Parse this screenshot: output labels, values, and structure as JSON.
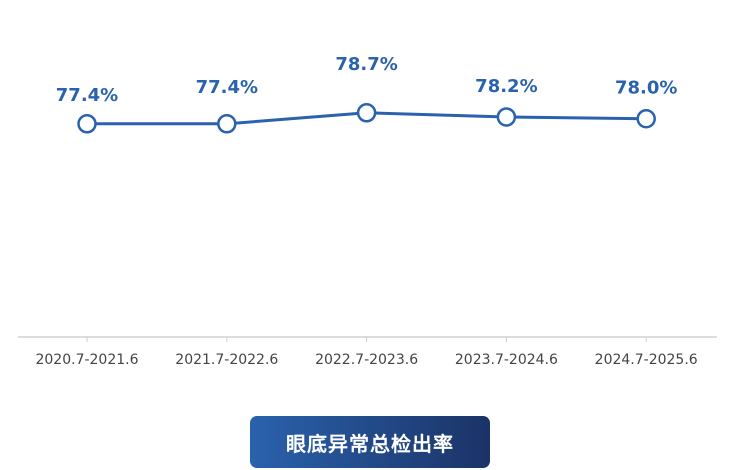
{
  "chart_data": {
    "type": "line",
    "title": "",
    "xlabel": "",
    "ylabel": "",
    "categories": [
      "2020.7-2021.6",
      "2021.7-2022.6",
      "2022.7-2023.6",
      "2023.7-2024.6",
      "2024.7-2025.6"
    ],
    "values": [
      77.4,
      77.4,
      78.7,
      78.2,
      78.0
    ],
    "data_labels": [
      "77.4%",
      "77.4%",
      "78.7%",
      "78.2%",
      "78.0%"
    ],
    "ylim": [
      52.2,
      82
    ],
    "grid": false,
    "line_color": "#2a62ad"
  },
  "legend_button": {
    "label": "眼底异常总检出率"
  }
}
